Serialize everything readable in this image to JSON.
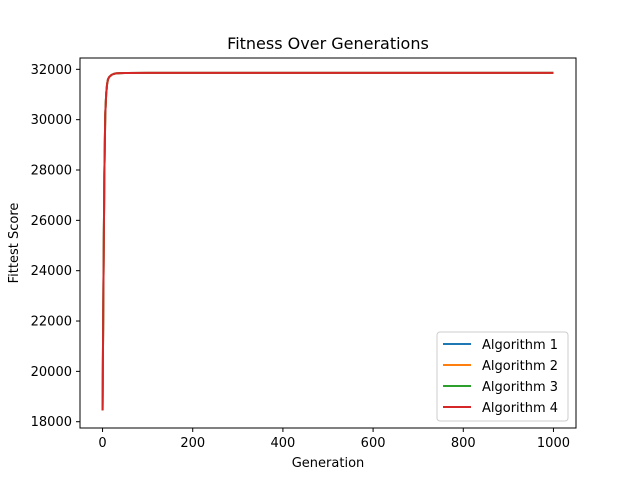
{
  "chart_data": {
    "type": "line",
    "title": "Fitness Over Generations",
    "xlabel": "Generation",
    "ylabel": "Fittest Score",
    "xlim": [
      -50,
      1050
    ],
    "ylim": [
      17750,
      32450
    ],
    "xticks": [
      0,
      200,
      400,
      600,
      800,
      1000
    ],
    "yticks": [
      18000,
      20000,
      22000,
      24000,
      26000,
      28000,
      30000,
      32000
    ],
    "grid": false,
    "legend_position": "lower-right",
    "series": [
      {
        "name": "Algorithm 1",
        "color": "#1f77b4",
        "x": [
          0,
          2,
          4,
          6,
          8,
          10,
          12,
          15,
          20,
          25,
          30,
          40,
          50,
          100,
          200,
          400,
          600,
          800,
          1000
        ],
        "y": [
          18450,
          23500,
          27800,
          30200,
          31000,
          31400,
          31600,
          31700,
          31780,
          31820,
          31840,
          31850,
          31855,
          31860,
          31860,
          31860,
          31860,
          31860,
          31860
        ]
      },
      {
        "name": "Algorithm 2",
        "color": "#ff7f0e",
        "x": [
          0,
          2,
          4,
          6,
          8,
          10,
          12,
          15,
          20,
          25,
          30,
          40,
          50,
          100,
          200,
          400,
          600,
          800,
          1000
        ],
        "y": [
          18450,
          23500,
          27800,
          30200,
          31000,
          31400,
          31600,
          31700,
          31780,
          31820,
          31840,
          31850,
          31855,
          31860,
          31860,
          31860,
          31860,
          31860,
          31860
        ]
      },
      {
        "name": "Algorithm 3",
        "color": "#2ca02c",
        "x": [
          0,
          2,
          4,
          6,
          8,
          10,
          12,
          15,
          20,
          25,
          30,
          40,
          50,
          100,
          200,
          400,
          600,
          800,
          1000
        ],
        "y": [
          18450,
          23500,
          27800,
          30200,
          31000,
          31400,
          31600,
          31700,
          31780,
          31820,
          31840,
          31850,
          31855,
          31860,
          31860,
          31860,
          31860,
          31860,
          31860
        ]
      },
      {
        "name": "Algorithm 4",
        "color": "#d62728",
        "x": [
          0,
          2,
          4,
          6,
          8,
          10,
          12,
          15,
          20,
          25,
          30,
          40,
          50,
          100,
          200,
          400,
          600,
          800,
          1000
        ],
        "y": [
          18450,
          23500,
          27800,
          30200,
          31000,
          31400,
          31600,
          31700,
          31780,
          31820,
          31840,
          31850,
          31855,
          31860,
          31860,
          31860,
          31860,
          31860,
          31860
        ]
      }
    ]
  }
}
